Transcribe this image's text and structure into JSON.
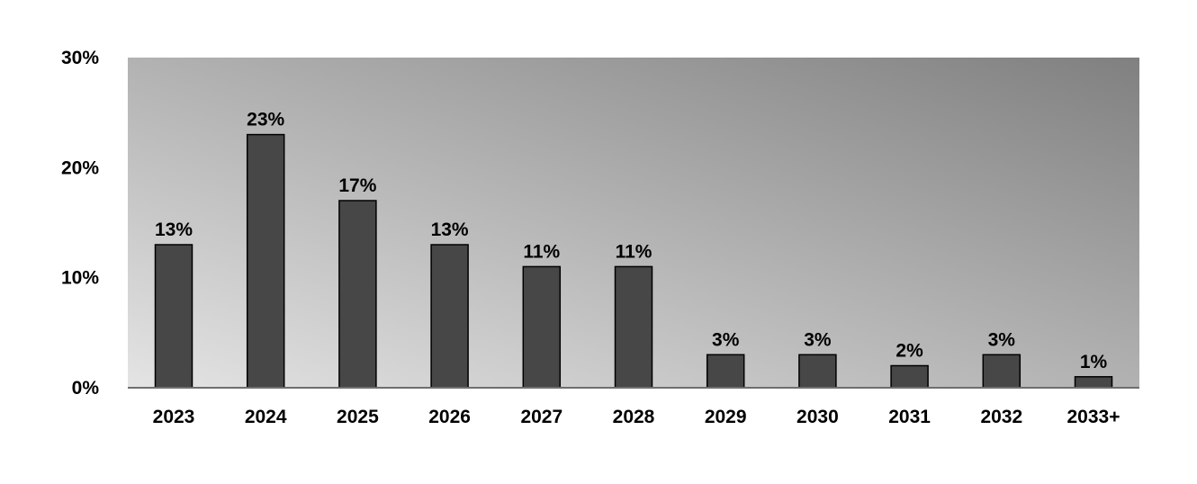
{
  "chart_data": {
    "type": "bar",
    "categories": [
      "2023",
      "2024",
      "2025",
      "2026",
      "2027",
      "2028",
      "2029",
      "2030",
      "2031",
      "2032",
      "2033+"
    ],
    "values": [
      13,
      23,
      17,
      13,
      11,
      11,
      3,
      3,
      2,
      3,
      1
    ],
    "data_labels": [
      "13%",
      "23%",
      "17%",
      "13%",
      "11%",
      "11%",
      "3%",
      "3%",
      "2%",
      "3%",
      "1%"
    ],
    "ylim": [
      0,
      30
    ],
    "yticks": [
      0,
      10,
      20,
      30
    ],
    "ytick_labels": [
      "0%",
      "10%",
      "20%",
      "30%"
    ],
    "grid": false,
    "legend": "none",
    "colors": {
      "bar_fill": "#474747",
      "bar_stroke": "#000000",
      "plot_bg_light": "#e4e4e4",
      "plot_bg_dark": "#808080",
      "axis": "#6e6e6e"
    }
  }
}
